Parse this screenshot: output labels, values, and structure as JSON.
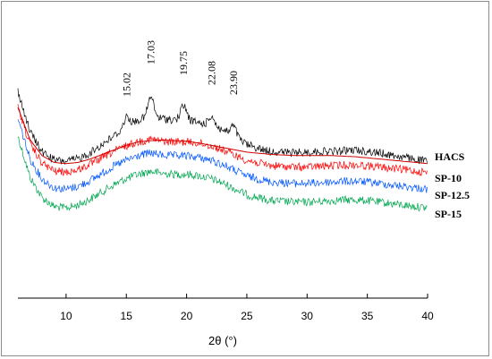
{
  "chart_data": {
    "type": "line",
    "title": "",
    "xlabel": "2θ (°)",
    "ylabel": "",
    "xlim": [
      6,
      40
    ],
    "x_ticks": [
      10,
      15,
      20,
      25,
      30,
      35,
      40
    ],
    "y_axis_visible": false,
    "grid": false,
    "legend": "inline labels at right end of each trace",
    "series": [
      {
        "name": "HACS",
        "color": "#000000",
        "profile": [
          [
            6,
            1.0
          ],
          [
            6.5,
            0.86
          ],
          [
            7,
            0.72
          ],
          [
            8,
            0.58
          ],
          [
            9,
            0.52
          ],
          [
            10,
            0.51
          ],
          [
            11,
            0.53
          ],
          [
            12,
            0.57
          ],
          [
            13,
            0.63
          ],
          [
            14,
            0.69
          ],
          [
            15,
            0.75
          ],
          [
            16,
            0.8
          ],
          [
            17,
            0.82
          ],
          [
            18,
            0.81
          ],
          [
            19,
            0.8
          ],
          [
            20,
            0.8
          ],
          [
            21,
            0.78
          ],
          [
            22,
            0.76
          ],
          [
            23,
            0.73
          ],
          [
            24,
            0.68
          ],
          [
            25,
            0.63
          ],
          [
            26,
            0.6
          ],
          [
            27,
            0.58
          ],
          [
            28,
            0.575
          ],
          [
            29,
            0.57
          ],
          [
            30,
            0.575
          ],
          [
            31,
            0.58
          ],
          [
            32,
            0.58
          ],
          [
            33,
            0.585
          ],
          [
            34,
            0.59
          ],
          [
            35,
            0.58
          ],
          [
            36,
            0.57
          ],
          [
            37,
            0.555
          ],
          [
            38,
            0.54
          ],
          [
            39,
            0.525
          ],
          [
            40,
            0.51
          ]
        ],
        "peaks": [
          {
            "x": 15.02,
            "label": "15.02"
          },
          {
            "x": 17.03,
            "label": "17.03"
          },
          {
            "x": 19.75,
            "label": "19.75"
          },
          {
            "x": 22.08,
            "label": "22.08"
          },
          {
            "x": 23.9,
            "label": "23.90"
          }
        ]
      },
      {
        "name": "SP-10",
        "color": "#ff0000",
        "profile": [
          [
            6,
            1.0
          ],
          [
            6.5,
            0.86
          ],
          [
            7,
            0.72
          ],
          [
            8,
            0.58
          ],
          [
            9,
            0.52
          ],
          [
            10,
            0.51
          ],
          [
            11,
            0.53
          ],
          [
            12,
            0.57
          ],
          [
            13,
            0.62
          ],
          [
            14,
            0.67
          ],
          [
            15,
            0.71
          ],
          [
            16,
            0.74
          ],
          [
            17,
            0.76
          ],
          [
            18,
            0.745
          ],
          [
            19,
            0.74
          ],
          [
            20,
            0.74
          ],
          [
            21,
            0.73
          ],
          [
            22,
            0.71
          ],
          [
            23,
            0.68
          ],
          [
            24,
            0.64
          ],
          [
            25,
            0.6
          ],
          [
            26,
            0.58
          ],
          [
            27,
            0.56
          ],
          [
            28,
            0.555
          ],
          [
            29,
            0.55
          ],
          [
            30,
            0.55
          ],
          [
            31,
            0.555
          ],
          [
            32,
            0.56
          ],
          [
            33,
            0.565
          ],
          [
            34,
            0.565
          ],
          [
            35,
            0.56
          ],
          [
            36,
            0.55
          ],
          [
            37,
            0.54
          ],
          [
            38,
            0.53
          ],
          [
            39,
            0.52
          ],
          [
            40,
            0.51
          ]
        ]
      },
      {
        "name": "SP-12.5",
        "color": "#0055ff",
        "profile": [
          [
            6,
            1.0
          ],
          [
            6.5,
            0.86
          ],
          [
            7,
            0.72
          ],
          [
            8,
            0.58
          ],
          [
            9,
            0.52
          ],
          [
            10,
            0.51
          ],
          [
            11,
            0.53
          ],
          [
            12,
            0.57
          ],
          [
            13,
            0.62
          ],
          [
            14,
            0.67
          ],
          [
            15,
            0.71
          ],
          [
            16,
            0.74
          ],
          [
            17,
            0.76
          ],
          [
            18,
            0.745
          ],
          [
            19,
            0.74
          ],
          [
            20,
            0.74
          ],
          [
            21,
            0.73
          ],
          [
            22,
            0.71
          ],
          [
            23,
            0.68
          ],
          [
            24,
            0.64
          ],
          [
            25,
            0.6
          ],
          [
            26,
            0.58
          ],
          [
            27,
            0.56
          ],
          [
            28,
            0.555
          ],
          [
            29,
            0.55
          ],
          [
            30,
            0.55
          ],
          [
            31,
            0.555
          ],
          [
            32,
            0.56
          ],
          [
            33,
            0.565
          ],
          [
            34,
            0.565
          ],
          [
            35,
            0.56
          ],
          [
            36,
            0.55
          ],
          [
            37,
            0.54
          ],
          [
            38,
            0.53
          ],
          [
            39,
            0.52
          ],
          [
            40,
            0.51
          ]
        ]
      },
      {
        "name": "SP-15",
        "color": "#00a651",
        "profile": [
          [
            6,
            1.0
          ],
          [
            6.5,
            0.86
          ],
          [
            7,
            0.72
          ],
          [
            8,
            0.58
          ],
          [
            9,
            0.52
          ],
          [
            10,
            0.51
          ],
          [
            11,
            0.53
          ],
          [
            12,
            0.57
          ],
          [
            13,
            0.62
          ],
          [
            14,
            0.67
          ],
          [
            15,
            0.71
          ],
          [
            16,
            0.74
          ],
          [
            17,
            0.76
          ],
          [
            18,
            0.745
          ],
          [
            19,
            0.74
          ],
          [
            20,
            0.74
          ],
          [
            21,
            0.73
          ],
          [
            22,
            0.71
          ],
          [
            23,
            0.68
          ],
          [
            24,
            0.64
          ],
          [
            25,
            0.6
          ],
          [
            26,
            0.58
          ],
          [
            27,
            0.56
          ],
          [
            28,
            0.555
          ],
          [
            29,
            0.55
          ],
          [
            30,
            0.55
          ],
          [
            31,
            0.555
          ],
          [
            32,
            0.56
          ],
          [
            33,
            0.565
          ],
          [
            34,
            0.565
          ],
          [
            35,
            0.56
          ],
          [
            36,
            0.55
          ],
          [
            37,
            0.54
          ],
          [
            38,
            0.53
          ],
          [
            39,
            0.52
          ],
          [
            40,
            0.51
          ]
        ]
      },
      {
        "name": "",
        "color": "#cc0000",
        "description_free": true,
        "profile": [
          [
            6,
            1.0
          ],
          [
            6.5,
            0.86
          ],
          [
            7,
            0.72
          ],
          [
            8,
            0.58
          ],
          [
            9,
            0.52
          ],
          [
            10,
            0.51
          ],
          [
            11,
            0.52
          ],
          [
            12,
            0.55
          ],
          [
            13,
            0.59
          ],
          [
            14,
            0.63
          ],
          [
            15,
            0.67
          ],
          [
            16,
            0.7
          ],
          [
            17,
            0.71
          ],
          [
            18,
            0.715
          ],
          [
            19,
            0.71
          ],
          [
            20,
            0.705
          ],
          [
            21,
            0.69
          ],
          [
            22,
            0.67
          ],
          [
            23,
            0.65
          ],
          [
            24,
            0.63
          ],
          [
            25,
            0.61
          ],
          [
            26,
            0.6
          ],
          [
            27,
            0.59
          ],
          [
            28,
            0.585
          ],
          [
            29,
            0.58
          ],
          [
            30,
            0.58
          ],
          [
            31,
            0.58
          ],
          [
            32,
            0.58
          ],
          [
            33,
            0.575
          ],
          [
            34,
            0.57
          ],
          [
            35,
            0.56
          ],
          [
            36,
            0.55
          ],
          [
            37,
            0.54
          ],
          [
            38,
            0.53
          ],
          [
            39,
            0.52
          ],
          [
            40,
            0.51
          ]
        ]
      }
    ]
  }
}
